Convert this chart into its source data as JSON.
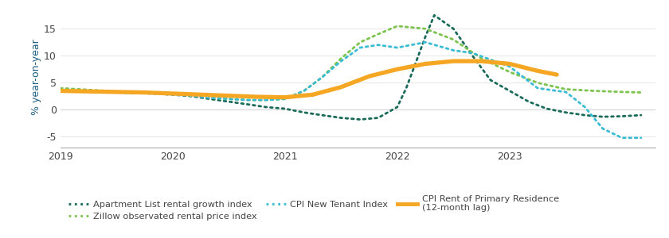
{
  "ylabel": "% year-on-year",
  "ylim": [
    -7,
    19
  ],
  "yticks": [
    -5,
    0,
    5,
    10,
    15
  ],
  "xlim": [
    2019.0,
    2024.3
  ],
  "xticks": [
    2019,
    2020,
    2021,
    2022,
    2023
  ],
  "bg_color": "#ffffff",
  "apartment_list": {
    "label": "Apartment List rental growth index",
    "color": "#1b6b5a",
    "x": [
      2019.0,
      2019.17,
      2019.33,
      2019.5,
      2019.67,
      2019.83,
      2020.0,
      2020.17,
      2020.33,
      2020.5,
      2020.67,
      2020.83,
      2021.0,
      2021.17,
      2021.33,
      2021.5,
      2021.67,
      2021.83,
      2022.0,
      2022.08,
      2022.17,
      2022.25,
      2022.33,
      2022.5,
      2022.67,
      2022.83,
      2023.0,
      2023.17,
      2023.33,
      2023.5,
      2023.67,
      2023.83,
      2024.0,
      2024.17
    ],
    "y": [
      3.5,
      3.4,
      3.3,
      3.2,
      3.1,
      3.0,
      2.8,
      2.5,
      2.0,
      1.5,
      1.0,
      0.5,
      0.2,
      -0.5,
      -1.0,
      -1.5,
      -1.8,
      -1.5,
      0.5,
      4.0,
      9.0,
      13.5,
      17.5,
      15.0,
      10.0,
      5.5,
      3.5,
      1.5,
      0.2,
      -0.5,
      -1.0,
      -1.3,
      -1.2,
      -1.0
    ]
  },
  "zillow": {
    "label": "Zillow observated rental price index",
    "color": "#7cc44e",
    "x": [
      2019.0,
      2019.17,
      2019.33,
      2019.5,
      2019.67,
      2019.83,
      2020.0,
      2020.17,
      2020.33,
      2020.5,
      2020.67,
      2020.83,
      2021.0,
      2021.17,
      2021.33,
      2021.5,
      2021.67,
      2021.83,
      2022.0,
      2022.25,
      2022.5,
      2022.75,
      2023.0,
      2023.25,
      2023.5,
      2023.75,
      2024.0,
      2024.17
    ],
    "y": [
      4.0,
      3.8,
      3.6,
      3.4,
      3.2,
      3.2,
      3.0,
      2.8,
      2.3,
      2.0,
      1.8,
      1.8,
      2.0,
      3.5,
      6.0,
      9.5,
      12.5,
      14.0,
      15.5,
      15.0,
      13.0,
      9.5,
      7.0,
      5.0,
      3.8,
      3.5,
      3.3,
      3.2
    ]
  },
  "cpi_new_tenant": {
    "label": "CPI New Tenant Index",
    "color": "#3bbcd4",
    "x": [
      2019.0,
      2019.17,
      2019.33,
      2019.5,
      2019.67,
      2019.83,
      2020.0,
      2020.17,
      2020.33,
      2020.5,
      2020.67,
      2020.83,
      2021.0,
      2021.17,
      2021.33,
      2021.5,
      2021.67,
      2021.83,
      2022.0,
      2022.25,
      2022.5,
      2022.67,
      2023.0,
      2023.25,
      2023.42,
      2023.5,
      2023.58,
      2023.67,
      2023.75,
      2023.83,
      2024.0,
      2024.17
    ],
    "y": [
      3.5,
      3.4,
      3.3,
      3.2,
      3.1,
      3.0,
      2.8,
      2.6,
      2.2,
      2.0,
      1.8,
      1.8,
      2.0,
      3.5,
      6.0,
      9.0,
      11.5,
      12.0,
      11.5,
      12.5,
      11.0,
      10.5,
      8.0,
      4.0,
      3.5,
      3.3,
      2.0,
      0.5,
      -1.5,
      -3.5,
      -5.2,
      -5.2
    ]
  },
  "cpi_rent": {
    "label": "CPI Rent of Primary Residence\n(12-month lag)",
    "color": "#f5a623",
    "x": [
      2019.0,
      2019.25,
      2019.5,
      2019.75,
      2020.0,
      2020.25,
      2020.5,
      2020.75,
      2021.0,
      2021.25,
      2021.5,
      2021.75,
      2022.0,
      2022.25,
      2022.5,
      2022.75,
      2023.0,
      2023.25,
      2023.42
    ],
    "y": [
      3.5,
      3.4,
      3.3,
      3.2,
      3.0,
      2.8,
      2.6,
      2.4,
      2.3,
      2.8,
      4.2,
      6.2,
      7.5,
      8.5,
      9.0,
      9.0,
      8.5,
      7.2,
      6.5
    ]
  },
  "legend_fontsize": 8.2,
  "tick_fontsize": 9,
  "label_fontsize": 9,
  "tick_color": "#444444",
  "label_color": "#1b5e82",
  "grid_color": "#e0e0e0",
  "zero_line_color": "#aaaaaa"
}
